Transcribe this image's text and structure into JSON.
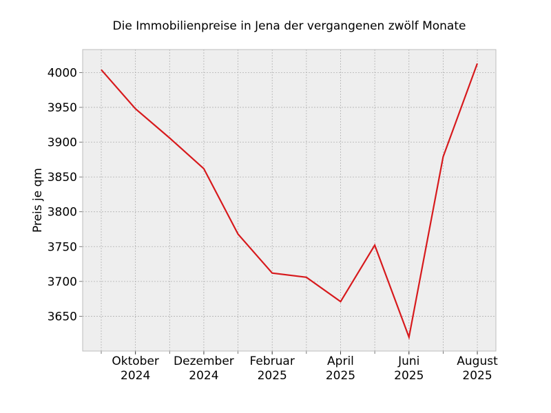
{
  "chart_data": {
    "type": "line",
    "title": "Die Immobilienpreise in Jena der vergangenen zwölf Monate",
    "xlabel": "",
    "ylabel": "Preis je qm",
    "x": [
      "2024-09",
      "2024-10",
      "2024-11",
      "2024-12",
      "2025-01",
      "2025-02",
      "2025-03",
      "2025-04",
      "2025-05",
      "2025-06",
      "2025-07",
      "2025-08"
    ],
    "series": [
      {
        "values": [
          4004,
          3948,
          3906,
          3862,
          3768,
          3712,
          3706,
          3671,
          3752,
          3620,
          3879,
          4013
        ]
      }
    ],
    "ylim": [
      3600,
      4033
    ],
    "yticks": [
      3650,
      3700,
      3750,
      3800,
      3850,
      3900,
      3950,
      4000
    ],
    "xtick_labels": [
      {
        "month": "Oktober",
        "year": "2024",
        "index": 1
      },
      {
        "month": "Dezember",
        "year": "2024",
        "index": 3
      },
      {
        "month": "Februar",
        "year": "2025",
        "index": 5
      },
      {
        "month": "April",
        "year": "2025",
        "index": 7
      },
      {
        "month": "Juni",
        "year": "2025",
        "index": 9
      },
      {
        "month": "August",
        "year": "2025",
        "index": 11
      }
    ],
    "grid": true,
    "colors": {
      "line": "#d7191c",
      "plot_background": "#eeeeee",
      "grid": "#b0b0b0"
    }
  }
}
